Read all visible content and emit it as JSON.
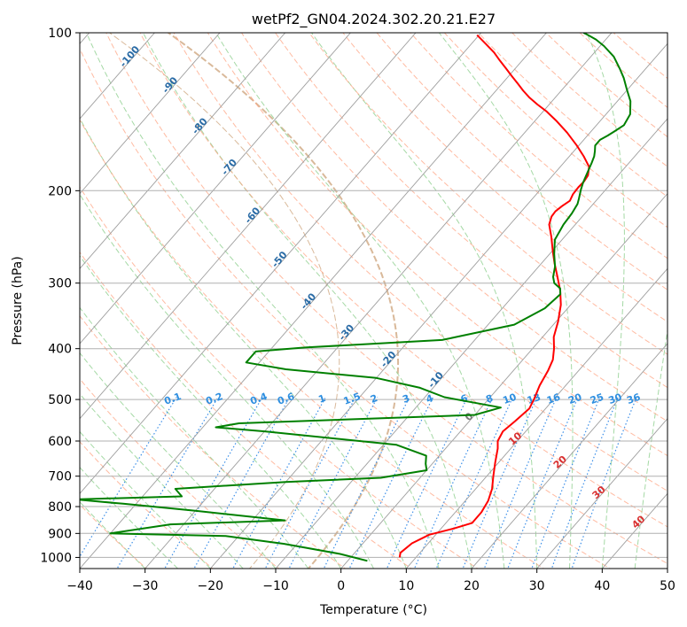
{
  "chart_data": {
    "type": "line",
    "title": "wetPf2_GN04.2024.302.20.21.E27",
    "xlabel": "Temperature (°C)",
    "ylabel": "Pressure (hPa)",
    "xlim": [
      -40,
      50
    ],
    "ylim": [
      1050,
      100
    ],
    "y_scale": "log",
    "x_ticks": [
      "−40",
      "−30",
      "−20",
      "−10",
      "0",
      "10",
      "20",
      "30",
      "40",
      "50"
    ],
    "y_ticks": [
      "100",
      "200",
      "300",
      "400",
      "500",
      "600",
      "700",
      "800",
      "900",
      "1000"
    ],
    "grid": true,
    "colors": {
      "temperature": "#ff0000",
      "dewpoint": "#008000",
      "isotherms": "#9e9e9e",
      "dry_adiabats": "#ff9e7a",
      "moist_adiabats": "#8fd08f",
      "mixing_ratio": "#3c8fe8",
      "mixing_ratio_labels": "#2f8fe0",
      "isotherm_labels": "#2b6ca6",
      "dry_adiabat_labels": "#d93030",
      "lcl_curves": "#d9b99a"
    },
    "series": [
      {
        "name": "",
        "color": "#ff0000",
        "points": [
          [
            7.5,
            1000
          ],
          [
            7,
            980
          ],
          [
            7.5,
            940
          ],
          [
            9,
            905
          ],
          [
            12,
            880
          ],
          [
            14,
            860
          ],
          [
            14,
            820
          ],
          [
            13.5,
            780
          ],
          [
            12.5,
            740
          ],
          [
            11,
            700
          ],
          [
            9.5,
            660
          ],
          [
            8,
            620
          ],
          [
            7,
            600
          ],
          [
            6.5,
            575
          ],
          [
            7,
            550
          ],
          [
            7.5,
            520
          ],
          [
            7,
            500
          ],
          [
            6,
            470
          ],
          [
            5.3,
            440
          ],
          [
            4.6,
            420
          ],
          [
            3.3,
            400
          ],
          [
            1.7,
            380
          ],
          [
            0.3,
            355
          ],
          [
            -1.5,
            330
          ],
          [
            -3.5,
            310
          ],
          [
            -6,
            290
          ],
          [
            -8,
            275
          ],
          [
            -10,
            260
          ],
          [
            -12,
            245
          ],
          [
            -14,
            232
          ],
          [
            -14.7,
            224
          ],
          [
            -14.8,
            219
          ],
          [
            -14.5,
            214
          ],
          [
            -14,
            209
          ],
          [
            -14.4,
            203
          ],
          [
            -14.5,
            197
          ],
          [
            -14.4,
            192
          ],
          [
            -14.6,
            187
          ],
          [
            -15.6,
            180
          ],
          [
            -17.8,
            172
          ],
          [
            -20.3,
            164
          ],
          [
            -23.5,
            155
          ],
          [
            -26.8,
            147
          ],
          [
            -29.6,
            141
          ],
          [
            -31.8,
            137
          ],
          [
            -33.9,
            133
          ],
          [
            -35.8,
            129
          ],
          [
            -37.6,
            125
          ],
          [
            -39.5,
            121
          ],
          [
            -41.4,
            117
          ],
          [
            -43.4,
            113
          ],
          [
            -45.4,
            109
          ],
          [
            -47.8,
            105
          ],
          [
            -50.3,
            101
          ]
        ]
      },
      {
        "name": "",
        "color": "#008000",
        "points": [
          [
            3,
            1015
          ],
          [
            -2,
            985
          ],
          [
            -12,
            942
          ],
          [
            -22,
            910
          ],
          [
            -40,
            900
          ],
          [
            -32,
            865
          ],
          [
            -15,
            850
          ],
          [
            -30,
            815
          ],
          [
            -42,
            790
          ],
          [
            -50,
            775
          ],
          [
            -34,
            765
          ],
          [
            -36,
            740
          ],
          [
            -20,
            718
          ],
          [
            -6,
            705
          ],
          [
            0,
            682
          ],
          [
            -1,
            663
          ],
          [
            -2,
            640
          ],
          [
            -8,
            610
          ],
          [
            -30,
            575
          ],
          [
            -38,
            565
          ],
          [
            -35,
            555
          ],
          [
            0,
            535
          ],
          [
            3,
            518
          ],
          [
            -7,
            495
          ],
          [
            -12,
            475
          ],
          [
            -20,
            455
          ],
          [
            -35,
            438
          ],
          [
            -42,
            425
          ],
          [
            -42,
            405
          ],
          [
            -35,
            398
          ],
          [
            -15,
            385
          ],
          [
            -6,
            360
          ],
          [
            -3.5,
            335
          ],
          [
            -3,
            315
          ],
          [
            -3.8,
            307
          ],
          [
            -5.4,
            300
          ],
          [
            -6.4,
            292
          ],
          [
            -7.5,
            279
          ],
          [
            -9.3,
            264
          ],
          [
            -11.1,
            248
          ],
          [
            -11.8,
            232
          ],
          [
            -12,
            221
          ],
          [
            -12.4,
            212
          ],
          [
            -12.9,
            207
          ],
          [
            -13.8,
            199
          ],
          [
            -14.4,
            193
          ],
          [
            -14.8,
            188
          ],
          [
            -15.3,
            182
          ],
          [
            -15.7,
            177
          ],
          [
            -16.2,
            172
          ],
          [
            -16.8,
            168
          ],
          [
            -17.5,
            164
          ],
          [
            -17.5,
            160
          ],
          [
            -16.9,
            157
          ],
          [
            -16.4,
            154
          ],
          [
            -15.8,
            150
          ],
          [
            -16.3,
            143
          ],
          [
            -18,
            135
          ],
          [
            -20.2,
            128
          ],
          [
            -22.1,
            122
          ],
          [
            -24,
            117
          ],
          [
            -26.5,
            111
          ],
          [
            -29.4,
            106
          ],
          [
            -31.5,
            103
          ],
          [
            -33.3,
            101
          ],
          [
            -34.3,
            100
          ]
        ]
      }
    ],
    "isotherm_labels": [
      "-100",
      "-90",
      "-80",
      "-70",
      "-60",
      "-50",
      "-40",
      "-30",
      "-20",
      "-10"
    ],
    "mixing_ratio_labels": [
      "0.1",
      "0.2",
      "0.4",
      "0.6",
      "1",
      "1.5",
      "2",
      "3",
      "4",
      "6",
      "8",
      "10",
      "13",
      "16",
      "20",
      "25",
      "30",
      "36"
    ],
    "dry_adiabat_labels": [
      "0",
      "10",
      "20",
      "30",
      "40"
    ]
  }
}
